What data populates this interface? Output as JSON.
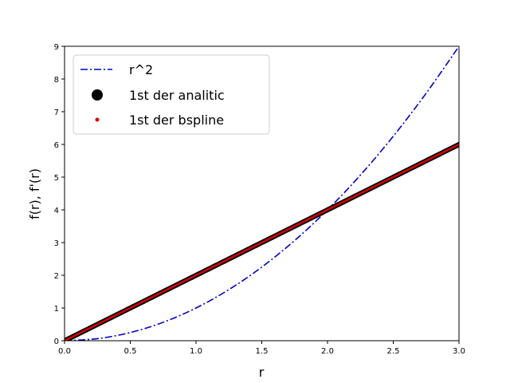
{
  "chart_data": {
    "type": "line",
    "xlabel": "r",
    "ylabel": "f(r), f'(r)",
    "xlim": [
      0.0,
      3.0
    ],
    "ylim": [
      0,
      9
    ],
    "xticks": [
      0.0,
      0.5,
      1.0,
      1.5,
      2.0,
      2.5,
      3.0
    ],
    "xtick_labels": [
      "0.0",
      "0.5",
      "1.0",
      "1.5",
      "2.0",
      "2.5",
      "3.0"
    ],
    "yticks": [
      0,
      1,
      2,
      3,
      4,
      5,
      6,
      7,
      8,
      9
    ],
    "ytick_labels": [
      "0",
      "1",
      "2",
      "3",
      "4",
      "5",
      "6",
      "7",
      "8",
      "9"
    ],
    "grid": false,
    "legend_placement": "upper-left",
    "series": [
      {
        "name": "r^2",
        "style": "dash-dot line",
        "color": "#0000cc",
        "x": [
          0.0,
          0.25,
          0.5,
          0.75,
          1.0,
          1.25,
          1.5,
          1.75,
          2.0,
          2.25,
          2.5,
          2.75,
          3.0
        ],
        "y": [
          0.0,
          0.0625,
          0.25,
          0.5625,
          1.0,
          1.5625,
          2.25,
          3.0625,
          4.0,
          5.0625,
          6.25,
          7.5625,
          9.0
        ]
      },
      {
        "name": "1st der analitic",
        "style": "large black markers",
        "color": "#000000",
        "x": [
          0.0,
          0.5,
          1.0,
          1.5,
          2.0,
          2.5,
          3.0
        ],
        "y": [
          0.0,
          1.0,
          2.0,
          3.0,
          4.0,
          5.0,
          6.0
        ]
      },
      {
        "name": "1st der bspline",
        "style": "small red markers",
        "color": "#dd0000",
        "x": [
          0.0,
          0.5,
          1.0,
          1.5,
          2.0,
          2.5,
          3.0
        ],
        "y": [
          0.0,
          1.0,
          2.0,
          3.0,
          4.0,
          5.0,
          6.0
        ]
      }
    ]
  }
}
